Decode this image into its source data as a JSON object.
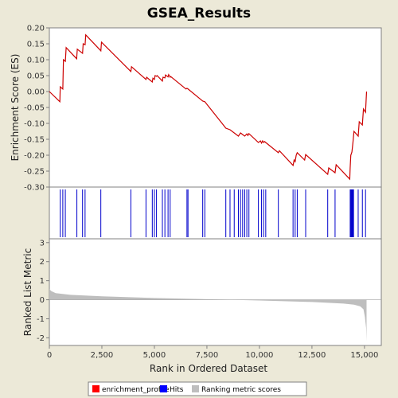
{
  "chart_data": {
    "type": "line",
    "title": "GSEA_Results",
    "xlabel": "Rank in Ordered Dataset",
    "ylabel_top": "Enrichment Score (ES)",
    "ylabel_bottom": "Ranked List Metric",
    "x_ticks": [
      "0",
      "2,500",
      "5,000",
      "7,500",
      "10,000",
      "12,500",
      "15,000"
    ],
    "x_tick_values": [
      0,
      2500,
      5000,
      7500,
      10000,
      12500,
      15000
    ],
    "xlim": [
      0,
      15800
    ],
    "es_ticks": [
      "0.20",
      "0.15",
      "0.10",
      "0.05",
      "0.00",
      "-0.05",
      "-0.10",
      "-0.15",
      "-0.20",
      "-0.25",
      "-0.30"
    ],
    "es_tick_values": [
      0.2,
      0.15,
      0.1,
      0.05,
      0.0,
      -0.05,
      -0.1,
      -0.15,
      -0.2,
      -0.25,
      -0.3
    ],
    "es_ylim": [
      -0.3,
      0.2
    ],
    "metric_ticks": [
      "3",
      "2",
      "1",
      "0",
      "-1",
      "-2"
    ],
    "metric_tick_values": [
      3,
      2,
      1,
      0,
      -1,
      -2
    ],
    "metric_ylim": [
      -2.4,
      3.2
    ],
    "series": [
      {
        "name": "enrichment_profile",
        "color": "#CC0000",
        "x": [
          0,
          500,
          520,
          640,
          670,
          760,
          800,
          1300,
          1330,
          1580,
          1610,
          1700,
          1730,
          2450,
          2480,
          3880,
          3910,
          4600,
          4630,
          4900,
          4930,
          5000,
          5030,
          5100,
          5130,
          5380,
          5410,
          5500,
          5530,
          5650,
          5680,
          5750,
          5780,
          6500,
          6550,
          6600,
          7300,
          7400,
          8200,
          8400,
          8600,
          9000,
          9100,
          9200,
          9300,
          9400,
          9450,
          9500,
          9950,
          10050,
          10100,
          10150,
          10200,
          10250,
          10300,
          10900,
          10950,
          11600,
          11650,
          11700,
          11750,
          11800,
          12150,
          12200,
          13250,
          13300,
          13600,
          13650,
          14300,
          14320,
          14350,
          14400,
          14450,
          14500,
          14700,
          14750,
          14900,
          14950,
          15050,
          15100
        ],
        "y": [
          0.0,
          -0.032,
          0.015,
          0.008,
          0.1,
          0.095,
          0.138,
          0.103,
          0.133,
          0.12,
          0.15,
          0.147,
          0.178,
          0.128,
          0.155,
          0.063,
          0.078,
          0.038,
          0.045,
          0.03,
          0.042,
          0.038,
          0.05,
          0.048,
          0.05,
          0.033,
          0.045,
          0.043,
          0.052,
          0.046,
          0.053,
          0.045,
          0.047,
          0.008,
          0.01,
          0.008,
          -0.03,
          -0.032,
          -0.098,
          -0.115,
          -0.12,
          -0.14,
          -0.13,
          -0.135,
          -0.14,
          -0.133,
          -0.138,
          -0.132,
          -0.16,
          -0.155,
          -0.162,
          -0.155,
          -0.16,
          -0.157,
          -0.16,
          -0.192,
          -0.186,
          -0.232,
          -0.215,
          -0.22,
          -0.2,
          -0.192,
          -0.215,
          -0.198,
          -0.26,
          -0.24,
          -0.255,
          -0.23,
          -0.275,
          -0.24,
          -0.2,
          -0.19,
          -0.16,
          -0.125,
          -0.14,
          -0.095,
          -0.105,
          -0.055,
          -0.065,
          0.0
        ]
      },
      {
        "name": "Hits",
        "color": "#0000CC",
        "hits": [
          520,
          640,
          760,
          1310,
          1580,
          1700,
          2450,
          3880,
          4600,
          4900,
          5000,
          5100,
          5380,
          5500,
          5650,
          5750,
          6550,
          6600,
          7300,
          7400,
          8400,
          8600,
          8800,
          9000,
          9100,
          9200,
          9300,
          9400,
          9500,
          9950,
          10100,
          10200,
          10300,
          10900,
          11600,
          11700,
          11800,
          12200,
          13250,
          13600,
          14320,
          14350,
          14380,
          14400,
          14420,
          14450,
          14480,
          14700,
          14900,
          15050
        ]
      },
      {
        "name": "Ranking metric scores",
        "color": "#BEBEBE",
        "metric_curve": {
          "x": [
            0,
            100,
            300,
            1000,
            2500,
            5000,
            7500,
            10000,
            12500,
            14000,
            14500,
            14800,
            14950,
            15020,
            15080,
            15100
          ],
          "y": [
            0.55,
            0.45,
            0.35,
            0.26,
            0.18,
            0.09,
            0.03,
            -0.04,
            -0.12,
            -0.2,
            -0.26,
            -0.35,
            -0.5,
            -0.9,
            -1.5,
            -2.2
          ]
        }
      }
    ],
    "legend": [
      "enrichment_profile",
      "Hits",
      "Ranking metric scores"
    ],
    "legend_position": "bottom",
    "grid": false
  }
}
